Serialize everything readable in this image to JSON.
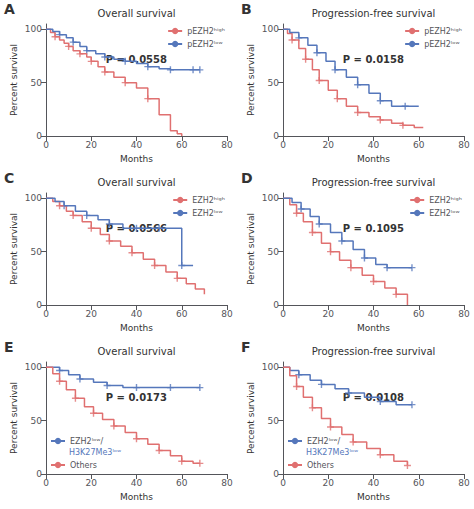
{
  "chart_data": [
    {
      "type": "step",
      "panel_label": "A",
      "title": "Overall survival",
      "xlabel": "Months",
      "ylabel": "Percent survival",
      "xlim": [
        0,
        80
      ],
      "ylim": [
        0,
        105
      ],
      "xticks": [
        0,
        20,
        40,
        60,
        80
      ],
      "yticks": [
        0,
        50,
        100
      ],
      "grid": false,
      "legend": "upper right",
      "annotations": [
        {
          "text": "P = 0.0558"
        }
      ],
      "series": [
        {
          "name": "pEZH2ʰⁱᵍʰ",
          "color": "#e07070",
          "marker": "+",
          "x": [
            0,
            2,
            4,
            6,
            8,
            10,
            12,
            15,
            18,
            20,
            23,
            26,
            30,
            35,
            40,
            45,
            50,
            55,
            58,
            60
          ],
          "values": [
            100,
            97,
            93,
            90,
            87,
            84,
            80,
            77,
            74,
            70,
            65,
            60,
            55,
            50,
            45,
            35,
            20,
            5,
            2,
            0
          ],
          "censor_x": [
            4,
            10,
            15,
            20,
            26,
            35,
            45
          ],
          "censor_values": [
            93,
            84,
            77,
            70,
            60,
            50,
            35
          ]
        },
        {
          "name": "pEZH2ˡᵒʷ",
          "color": "#5577bb",
          "marker": "+",
          "x": [
            0,
            3,
            6,
            9,
            12,
            15,
            18,
            22,
            26,
            30,
            35,
            40,
            45,
            50,
            55,
            60,
            65,
            68
          ],
          "values": [
            100,
            98,
            95,
            92,
            88,
            84,
            80,
            77,
            74,
            72,
            70,
            68,
            65,
            63,
            62,
            62,
            62,
            62
          ],
          "censor_x": [
            6,
            12,
            18,
            26,
            35,
            45,
            55,
            65,
            68
          ],
          "censor_values": [
            95,
            88,
            80,
            74,
            70,
            65,
            62,
            62,
            62
          ]
        }
      ]
    },
    {
      "type": "step",
      "panel_label": "B",
      "title": "Progression-free survival",
      "xlabel": "Months",
      "ylabel": "Percent survival",
      "xlim": [
        0,
        80
      ],
      "ylim": [
        0,
        105
      ],
      "xticks": [
        0,
        20,
        40,
        60,
        80
      ],
      "yticks": [
        0,
        50,
        100
      ],
      "grid": false,
      "legend": "upper right",
      "annotations": [
        {
          "text": "P = 0.0158"
        }
      ],
      "series": [
        {
          "name": "pEZH2ʰⁱᵍʰ",
          "color": "#e07070",
          "marker": "+",
          "x": [
            0,
            2,
            4,
            7,
            10,
            13,
            16,
            20,
            24,
            28,
            33,
            38,
            43,
            48,
            53,
            58,
            62
          ],
          "values": [
            100,
            96,
            90,
            82,
            72,
            62,
            52,
            43,
            35,
            28,
            22,
            18,
            15,
            12,
            10,
            8,
            8
          ],
          "censor_x": [
            4,
            10,
            16,
            24,
            33,
            43,
            53
          ],
          "censor_values": [
            90,
            72,
            52,
            35,
            22,
            15,
            10
          ]
        },
        {
          "name": "pEZH2ˡᵒʷ",
          "color": "#5577bb",
          "marker": "+",
          "x": [
            0,
            3,
            7,
            11,
            15,
            19,
            23,
            28,
            33,
            38,
            43,
            48,
            54,
            60
          ],
          "values": [
            100,
            97,
            92,
            85,
            78,
            70,
            62,
            55,
            48,
            40,
            33,
            28,
            28,
            28
          ],
          "censor_x": [
            7,
            15,
            23,
            33,
            43,
            54
          ],
          "censor_values": [
            92,
            78,
            62,
            48,
            33,
            28
          ]
        }
      ]
    },
    {
      "type": "step",
      "panel_label": "C",
      "title": "Overall survival",
      "xlabel": "Months",
      "ylabel": "Percent survival",
      "xlim": [
        0,
        80
      ],
      "ylim": [
        0,
        105
      ],
      "xticks": [
        0,
        20,
        40,
        60,
        80
      ],
      "yticks": [
        0,
        50,
        100
      ],
      "grid": false,
      "legend": "upper right",
      "annotations": [
        {
          "text": "P = 0.0566"
        }
      ],
      "series": [
        {
          "name": "EZH2ʰⁱᵍʰ",
          "color": "#e07070",
          "marker": "+",
          "x": [
            0,
            3,
            6,
            9,
            12,
            16,
            20,
            24,
            28,
            33,
            38,
            43,
            48,
            53,
            58,
            62,
            66,
            70
          ],
          "values": [
            100,
            97,
            93,
            88,
            84,
            78,
            72,
            66,
            60,
            55,
            49,
            43,
            37,
            31,
            25,
            20,
            15,
            10
          ],
          "censor_x": [
            6,
            12,
            20,
            28,
            38,
            48,
            58
          ],
          "censor_values": [
            93,
            84,
            72,
            60,
            49,
            37,
            25
          ]
        },
        {
          "name": "EZH2ˡᵒʷ",
          "color": "#5577bb",
          "marker": "+",
          "x": [
            0,
            4,
            8,
            13,
            18,
            23,
            28,
            34,
            40,
            45,
            50,
            55,
            60,
            65
          ],
          "values": [
            100,
            97,
            93,
            88,
            84,
            80,
            76,
            72,
            72,
            72,
            72,
            72,
            37,
            37
          ],
          "censor_x": [
            8,
            18,
            28,
            40,
            50,
            60
          ],
          "censor_values": [
            93,
            84,
            76,
            72,
            72,
            37
          ]
        }
      ]
    },
    {
      "type": "step",
      "panel_label": "D",
      "title": "Progression-free survival",
      "xlabel": "Months",
      "ylabel": "Percent survival",
      "xlim": [
        0,
        80
      ],
      "ylim": [
        0,
        105
      ],
      "xticks": [
        0,
        20,
        40,
        60,
        80
      ],
      "yticks": [
        0,
        50,
        100
      ],
      "grid": false,
      "legend": "upper right",
      "annotations": [
        {
          "text": "P = 0.1095"
        }
      ],
      "series": [
        {
          "name": "EZH2ʰⁱᵍʰ",
          "color": "#e07070",
          "marker": "+",
          "x": [
            0,
            3,
            6,
            9,
            13,
            17,
            21,
            25,
            30,
            35,
            40,
            45,
            50,
            55
          ],
          "values": [
            100,
            94,
            86,
            78,
            68,
            58,
            50,
            42,
            35,
            28,
            22,
            16,
            10,
            0
          ],
          "censor_x": [
            6,
            13,
            21,
            30,
            40,
            50
          ],
          "censor_values": [
            86,
            68,
            50,
            35,
            22,
            10
          ]
        },
        {
          "name": "EZH2ˡᵒʷ",
          "color": "#5577bb",
          "marker": "+",
          "x": [
            0,
            4,
            8,
            12,
            16,
            21,
            26,
            31,
            36,
            41,
            46,
            51,
            57
          ],
          "values": [
            100,
            96,
            90,
            83,
            76,
            68,
            60,
            52,
            44,
            38,
            35,
            35,
            35
          ],
          "censor_x": [
            8,
            16,
            26,
            36,
            46,
            57
          ],
          "censor_values": [
            90,
            76,
            60,
            44,
            35,
            35
          ]
        }
      ]
    },
    {
      "type": "step",
      "panel_label": "E",
      "title": "Overall survival",
      "xlabel": "Months",
      "ylabel": "Percent survival",
      "xlim": [
        0,
        80
      ],
      "ylim": [
        0,
        105
      ],
      "xticks": [
        0,
        20,
        40,
        60,
        80
      ],
      "yticks": [
        0,
        50,
        100
      ],
      "grid": false,
      "legend": "lower left",
      "annotations": [
        {
          "text": "P = 0.0173"
        }
      ],
      "series": [
        {
          "name": "EZH2ˡᵒʷ/",
          "legend_note": "H3K27Me3ˡᵒʷ",
          "color": "#5577bb",
          "marker": "+",
          "x": [
            0,
            3,
            6,
            10,
            15,
            21,
            27,
            34,
            40,
            47,
            55,
            63,
            68
          ],
          "values": [
            100,
            100,
            97,
            93,
            89,
            86,
            83,
            81,
            81,
            81,
            81,
            81,
            81
          ],
          "censor_x": [
            6,
            15,
            27,
            40,
            55,
            68
          ],
          "censor_values": [
            97,
            89,
            83,
            81,
            81,
            81
          ]
        },
        {
          "name": "Others",
          "color": "#e07070",
          "marker": "+",
          "x": [
            0,
            3,
            6,
            9,
            13,
            17,
            21,
            25,
            30,
            35,
            40,
            45,
            50,
            55,
            60,
            65,
            68
          ],
          "values": [
            100,
            94,
            87,
            79,
            71,
            63,
            57,
            51,
            45,
            39,
            33,
            28,
            22,
            17,
            12,
            10,
            10
          ],
          "censor_x": [
            6,
            13,
            21,
            30,
            40,
            50,
            60,
            68
          ],
          "censor_values": [
            87,
            71,
            57,
            45,
            33,
            22,
            12,
            10
          ]
        }
      ]
    },
    {
      "type": "step",
      "panel_label": "F",
      "title": "Progression-free survival",
      "xlabel": "Months",
      "ylabel": "Percent survival",
      "xlim": [
        0,
        80
      ],
      "ylim": [
        0,
        105
      ],
      "xticks": [
        0,
        20,
        40,
        60,
        80
      ],
      "yticks": [
        0,
        50,
        100
      ],
      "grid": false,
      "legend": "lower left",
      "annotations": [
        {
          "text": "P = 0.0108"
        }
      ],
      "series": [
        {
          "name": "EZH2ˡᵒʷ/",
          "legend_note": "H3K27Me3ˡᵒʷ",
          "color": "#5577bb",
          "marker": "+",
          "x": [
            0,
            3,
            7,
            12,
            17,
            23,
            29,
            36,
            43,
            50,
            57
          ],
          "values": [
            100,
            97,
            93,
            88,
            84,
            80,
            76,
            72,
            68,
            65,
            65
          ],
          "censor_x": [
            7,
            17,
            29,
            43,
            57
          ],
          "censor_values": [
            93,
            84,
            76,
            68,
            65
          ]
        },
        {
          "name": "Others",
          "color": "#e07070",
          "marker": "+",
          "x": [
            0,
            3,
            6,
            9,
            13,
            17,
            21,
            26,
            31,
            37,
            43,
            49,
            55
          ],
          "values": [
            100,
            92,
            82,
            72,
            62,
            52,
            44,
            37,
            30,
            24,
            18,
            12,
            8
          ],
          "censor_x": [
            6,
            13,
            21,
            31,
            43,
            55
          ],
          "censor_values": [
            82,
            62,
            44,
            30,
            18,
            8
          ]
        }
      ]
    }
  ]
}
